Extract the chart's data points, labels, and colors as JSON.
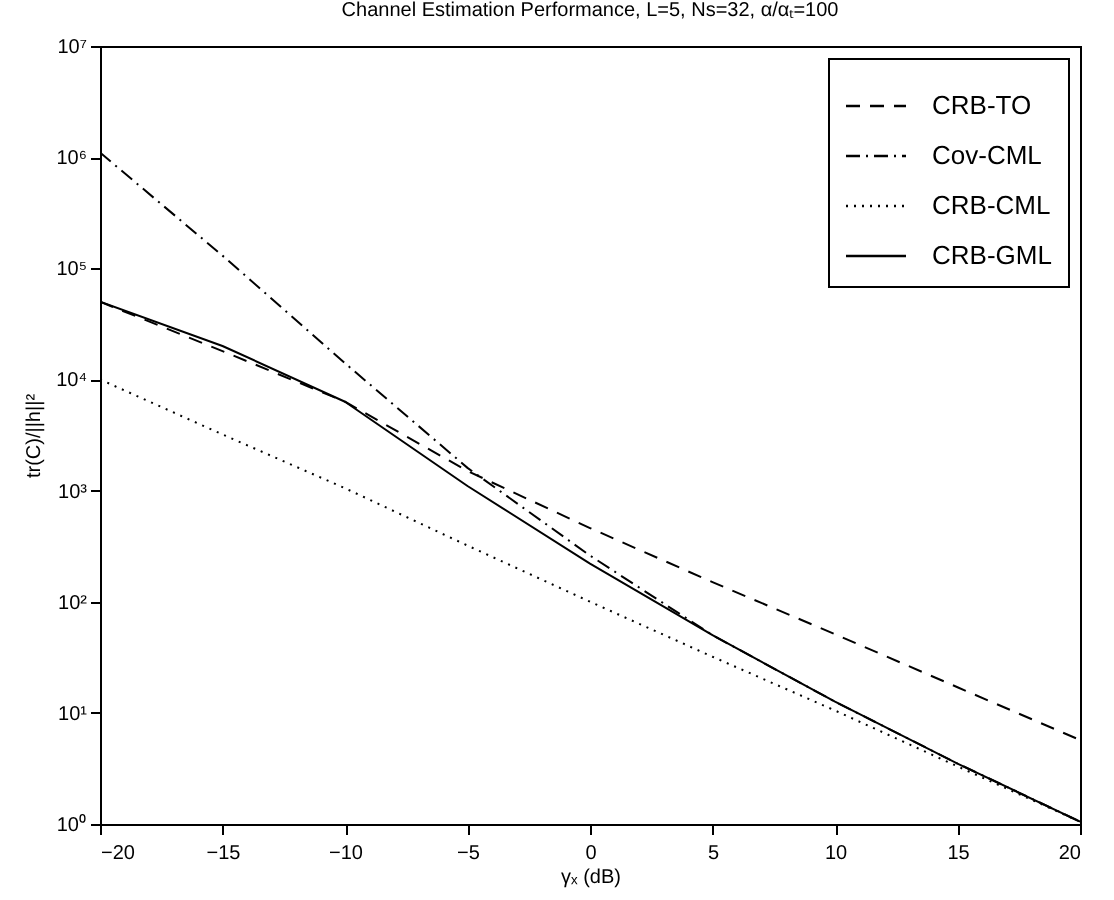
{
  "chart_data": {
    "type": "line",
    "title": "Channel Estimation Performance, L=5, Ns=32,    α/αₜ=100",
    "xlabel": "γₓ (dB)",
    "ylabel": "tr(C)/||h||²",
    "x": [
      -20,
      -15,
      -10,
      -5,
      0,
      5,
      10,
      15,
      20
    ],
    "series": [
      {
        "name": "CRB-TO",
        "color": "#000000",
        "line_style": "dashed",
        "values": [
          50000,
          18000,
          6300,
          1500,
          460,
          150,
          51,
          17,
          5.7
        ]
      },
      {
        "name": "Cov-CML",
        "color": "#000000",
        "line_style": "dashdot",
        "values": [
          1100000,
          130000,
          14000,
          1600,
          260,
          50,
          12.6,
          3.5,
          1.05
        ]
      },
      {
        "name": "CRB-CML",
        "color": "#000000",
        "line_style": "dotted",
        "values": [
          10000,
          3200,
          1050,
          320,
          100,
          32,
          10.5,
          3.3,
          1.05
        ]
      },
      {
        "name": "CRB-GML",
        "color": "#000000",
        "line_style": "solid",
        "values": [
          50000,
          20000,
          6300,
          1100,
          220,
          50,
          12.6,
          3.5,
          1.05
        ]
      }
    ],
    "log": "y",
    "xlim": [
      -20,
      20
    ],
    "xticks": [
      -20,
      -15,
      -10,
      -5,
      0,
      5,
      10,
      15,
      20
    ],
    "ylim": [
      1,
      10000000
    ],
    "yticks": [
      {
        "value": 1,
        "label": "10⁰"
      },
      {
        "value": 10,
        "label": "10¹"
      },
      {
        "value": 100,
        "label": "10²"
      },
      {
        "value": 1000,
        "label": "10³"
      },
      {
        "value": 10000,
        "label": "10⁴"
      },
      {
        "value": 100000,
        "label": "10⁵"
      },
      {
        "value": 1000000,
        "label": "10⁶"
      },
      {
        "value": 10000000,
        "label": "10⁷"
      }
    ],
    "grid": false,
    "legend": "top right",
    "marker": "none"
  }
}
